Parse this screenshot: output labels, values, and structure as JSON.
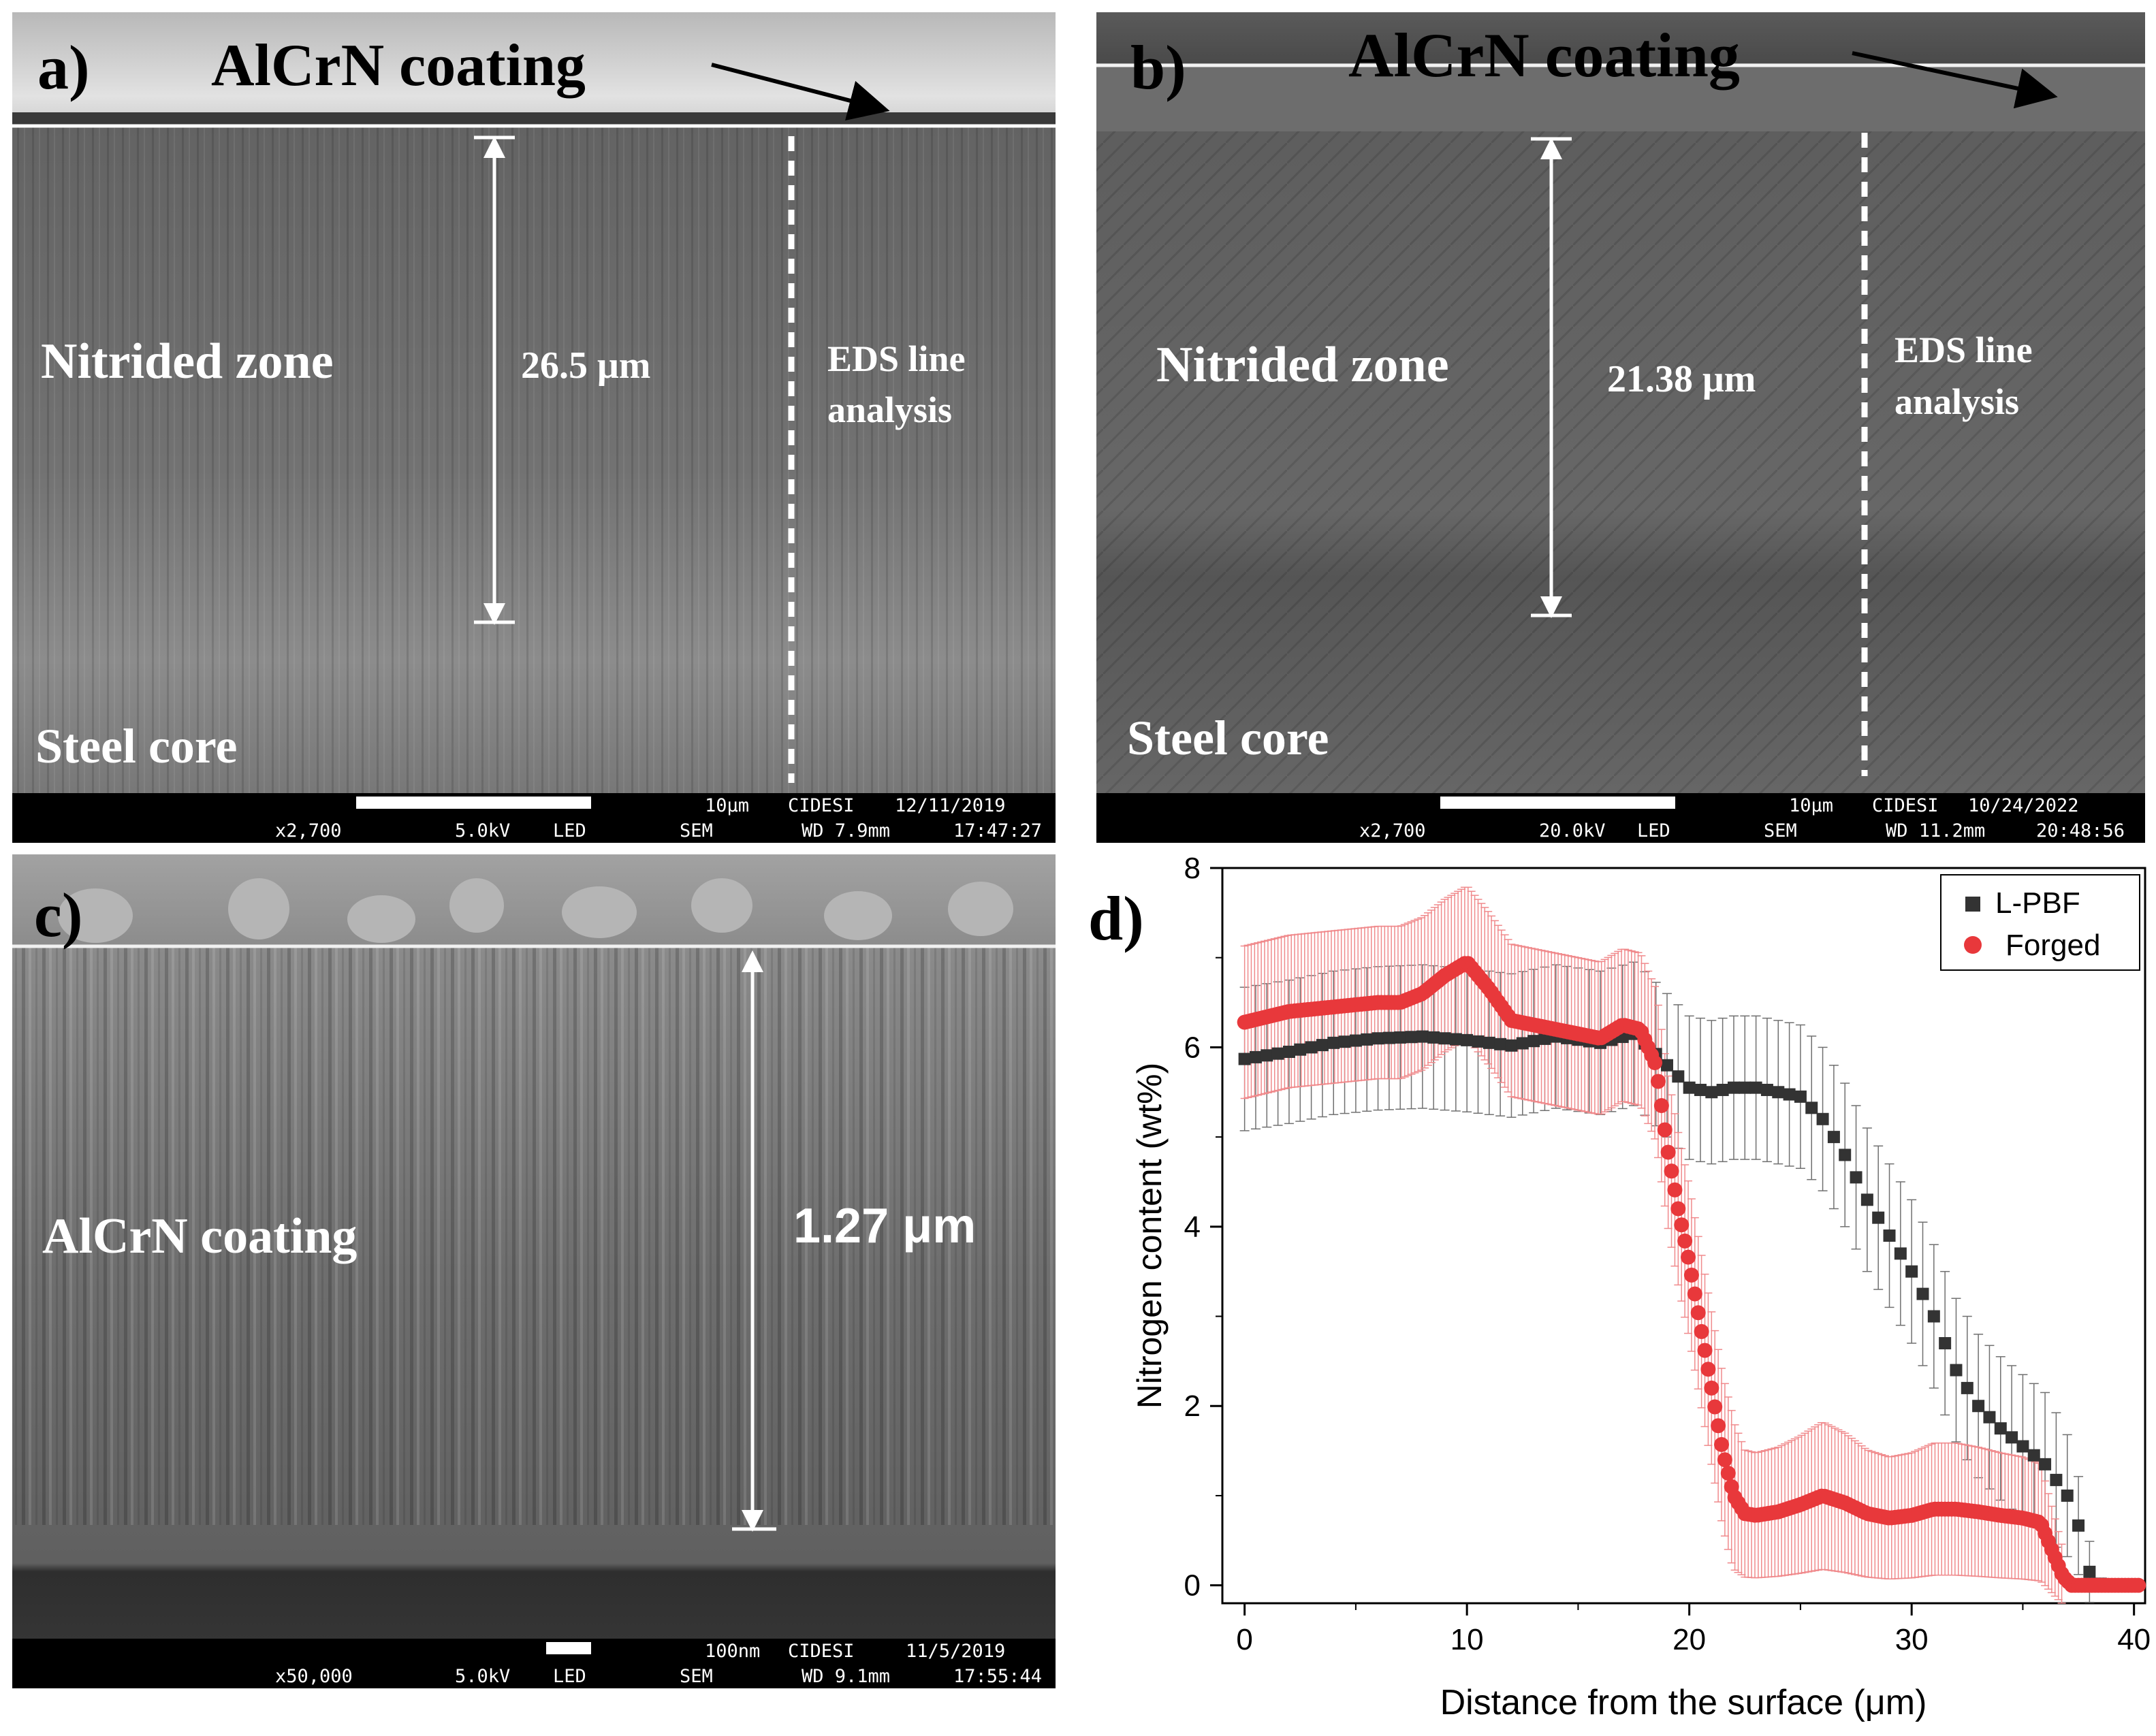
{
  "panel_a": {
    "label": "a)",
    "coating_label": "AlCrN coating",
    "zone_label": "Nitrided zone",
    "thickness": "26.5 μm",
    "eds_line1": "EDS line",
    "eds_line2": "analysis",
    "core_label": "Steel core",
    "scale": "10μm",
    "org": "CIDESI",
    "date": "12/11/2019",
    "mag": "x2,700",
    "kv": "5.0kV",
    "det": "LED",
    "mode": "SEM",
    "wd": "WD 7.9mm",
    "time": "17:47:27"
  },
  "panel_b": {
    "label": "b)",
    "coating_label": "AlCrN coating",
    "zone_label": "Nitrided zone",
    "thickness": "21.38 μm",
    "eds_line1": "EDS line",
    "eds_line2": "analysis",
    "core_label": "Steel core",
    "scale": "10μm",
    "org": "CIDESI",
    "date": "10/24/2022",
    "mag": "x2,700",
    "kv": "20.0kV",
    "det": "LED",
    "mode": "SEM",
    "wd": "WD 11.2mm",
    "time": "20:48:56"
  },
  "panel_c": {
    "label": "c)",
    "coating_label": "AlCrN coating",
    "thickness": "1.27 μm",
    "scale": "100nm",
    "org": "CIDESI",
    "date": "11/5/2019",
    "mag": "x50,000",
    "kv": "5.0kV",
    "det": "LED",
    "mode": "SEM",
    "wd": "WD 9.1mm",
    "time": "17:55:44"
  },
  "panel_d": {
    "label": "d)"
  },
  "colors": {
    "lpbf": "#333333",
    "forged": "#e8383b",
    "forged_err": "#f08a8c",
    "lpbf_err": "#707070"
  },
  "chart_data": {
    "type": "scatter",
    "title": "",
    "xlabel": "Distance from the surface (μm)",
    "ylabel": "Nitrogen content (wt%)",
    "xlim": [
      -1,
      40.5
    ],
    "ylim": [
      -0.2,
      8
    ],
    "xticks": [
      0,
      10,
      20,
      30,
      40
    ],
    "yticks": [
      0,
      2,
      4,
      6,
      8
    ],
    "legend_position": "top-right",
    "series": [
      {
        "name": "L-PBF",
        "marker": "square",
        "points": [
          [
            0,
            5.87
          ],
          [
            2,
            5.95
          ],
          [
            4,
            6.05
          ],
          [
            6,
            6.1
          ],
          [
            8,
            6.12
          ],
          [
            10,
            6.08
          ],
          [
            12,
            6.02
          ],
          [
            14,
            6.12
          ],
          [
            16,
            6.05
          ],
          [
            17.5,
            6.15
          ],
          [
            18.2,
            6.0
          ],
          [
            19,
            5.8
          ],
          [
            20,
            5.55
          ],
          [
            21,
            5.5
          ],
          [
            22,
            5.55
          ],
          [
            23,
            5.55
          ],
          [
            24,
            5.5
          ],
          [
            25,
            5.45
          ],
          [
            26,
            5.2
          ],
          [
            27,
            4.8
          ],
          [
            28,
            4.3
          ],
          [
            29,
            3.9
          ],
          [
            30,
            3.5
          ],
          [
            31,
            3.0
          ],
          [
            32,
            2.4
          ],
          [
            33,
            2.0
          ],
          [
            34,
            1.75
          ],
          [
            35,
            1.55
          ],
          [
            36,
            1.35
          ],
          [
            37,
            1.0
          ],
          [
            37.6,
            0.6
          ],
          [
            38,
            0.15
          ],
          [
            38.3,
            0.02
          ],
          [
            40,
            0.0
          ]
        ],
        "err": 0.8
      },
      {
        "name": "Forged",
        "marker": "circle",
        "points": [
          [
            0,
            6.28
          ],
          [
            2,
            6.4
          ],
          [
            4,
            6.45
          ],
          [
            6,
            6.5
          ],
          [
            7,
            6.5
          ],
          [
            8,
            6.6
          ],
          [
            9,
            6.8
          ],
          [
            10,
            6.95
          ],
          [
            11,
            6.65
          ],
          [
            12,
            6.3
          ],
          [
            13,
            6.25
          ],
          [
            14,
            6.2
          ],
          [
            15,
            6.15
          ],
          [
            16,
            6.1
          ],
          [
            17,
            6.25
          ],
          [
            17.8,
            6.2
          ],
          [
            18.5,
            5.8
          ],
          [
            19,
            4.9
          ],
          [
            19.5,
            4.2
          ],
          [
            20,
            3.6
          ],
          [
            20.5,
            2.9
          ],
          [
            21,
            2.2
          ],
          [
            21.5,
            1.5
          ],
          [
            22,
            1.0
          ],
          [
            22.5,
            0.8
          ],
          [
            23,
            0.78
          ],
          [
            24,
            0.82
          ],
          [
            25,
            0.9
          ],
          [
            26,
            1.0
          ],
          [
            27,
            0.92
          ],
          [
            28,
            0.8
          ],
          [
            29,
            0.75
          ],
          [
            30,
            0.78
          ],
          [
            31,
            0.85
          ],
          [
            32,
            0.85
          ],
          [
            33,
            0.82
          ],
          [
            34,
            0.78
          ],
          [
            35,
            0.75
          ],
          [
            35.8,
            0.7
          ],
          [
            36.3,
            0.4
          ],
          [
            36.8,
            0.1
          ],
          [
            37.2,
            0.0
          ],
          [
            40.3,
            0.0
          ]
        ],
        "err": 0.85
      }
    ]
  }
}
